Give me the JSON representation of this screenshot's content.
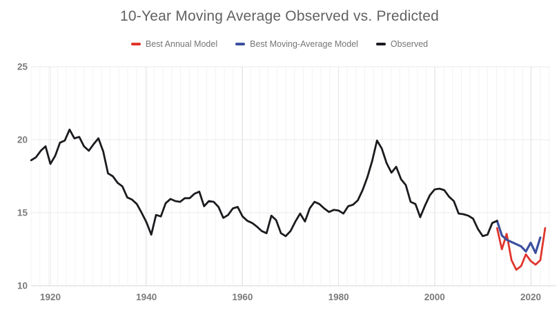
{
  "chart_data": {
    "type": "line",
    "title": "10-Year Moving Average Observed vs. Predicted",
    "legend_position": "top",
    "grid": true,
    "x_axis": {
      "range": [
        1916,
        2024.5
      ],
      "ticks": [
        1920,
        1940,
        1960,
        1980,
        2000,
        2020
      ]
    },
    "y_axis": {
      "range": [
        10,
        25
      ],
      "ticks": [
        10,
        15,
        20,
        25
      ]
    },
    "series": [
      {
        "name": "Best Annual Model",
        "color": "#e0352c",
        "start_year": 2013,
        "values": [
          13.95,
          12.5,
          13.55,
          11.75,
          11.1,
          11.35,
          12.15,
          11.7,
          11.45,
          11.75,
          13.95
        ]
      },
      {
        "name": "Best Moving-Average Model",
        "color": "#3c4f9f",
        "start_year": 2013,
        "values": [
          14.45,
          13.45,
          13.15,
          13.0,
          12.85,
          12.7,
          12.35,
          12.95,
          12.25,
          13.3
        ]
      },
      {
        "name": "Observed",
        "color": "#1b1b1f",
        "start_year": 1916,
        "values": [
          18.6,
          18.8,
          19.25,
          19.55,
          18.35,
          18.9,
          19.8,
          19.95,
          20.7,
          20.1,
          20.2,
          19.55,
          19.25,
          19.7,
          20.1,
          19.2,
          17.7,
          17.5,
          17.05,
          16.8,
          16.05,
          15.9,
          15.6,
          15.0,
          14.35,
          13.5,
          14.85,
          14.75,
          15.65,
          15.95,
          15.8,
          15.75,
          16.0,
          16.0,
          16.3,
          16.45,
          15.45,
          15.8,
          15.75,
          15.4,
          14.65,
          14.85,
          15.3,
          15.4,
          14.75,
          14.45,
          14.3,
          14.05,
          13.75,
          13.6,
          14.8,
          14.5,
          13.6,
          13.4,
          13.75,
          14.4,
          14.95,
          14.4,
          15.3,
          15.75,
          15.6,
          15.3,
          15.05,
          15.2,
          15.15,
          14.95,
          15.45,
          15.55,
          15.85,
          16.55,
          17.45,
          18.55,
          19.95,
          19.4,
          18.4,
          17.75,
          18.15,
          17.3,
          16.9,
          15.75,
          15.6,
          14.7,
          15.5,
          16.2,
          16.6,
          16.65,
          16.55,
          16.1,
          15.8,
          14.95,
          14.9,
          14.8,
          14.6,
          13.9,
          13.4,
          13.5,
          14.3,
          14.45
        ]
      }
    ],
    "colors": {
      "title_text": "#616161",
      "axis_text": "#7b7b7b",
      "grid_minor_vertical": "#f3f3f3",
      "grid_major_vertical": "#e4e4e4",
      "grid_horizontal": "#e8e8e8",
      "baseline": "#d6d6d6",
      "background": "#ffffff"
    }
  }
}
